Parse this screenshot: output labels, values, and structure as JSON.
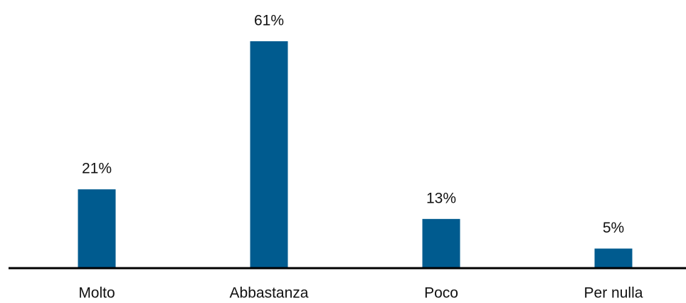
{
  "chart_data": {
    "type": "bar",
    "categories": [
      "Molto",
      "Abbastanza",
      "Poco",
      "Per nulla"
    ],
    "values": [
      21,
      61,
      13,
      5
    ],
    "value_labels": [
      "21%",
      "61%",
      "13%",
      "5%"
    ],
    "color": "#005b8f"
  }
}
